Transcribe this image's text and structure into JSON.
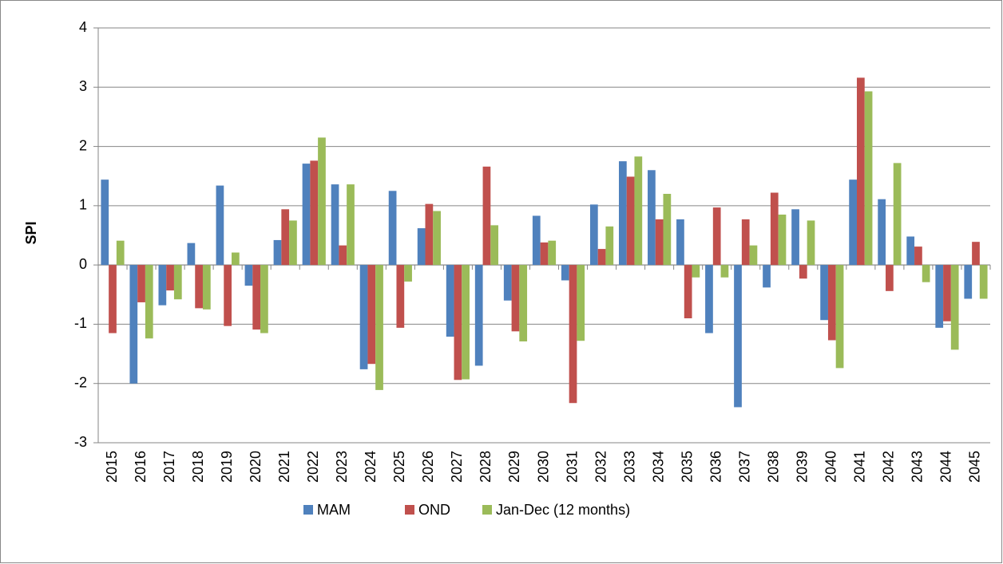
{
  "chart_data": {
    "type": "bar",
    "y_label": "SPI",
    "categories": [
      "2015",
      "2016",
      "2017",
      "2018",
      "2019",
      "2020",
      "2021",
      "2022",
      "2023",
      "2024",
      "2025",
      "2026",
      "2027",
      "2028",
      "2029",
      "2030",
      "2031",
      "2032",
      "2033",
      "2034",
      "2035",
      "2036",
      "2037",
      "2038",
      "2039",
      "2040",
      "2041",
      "2042",
      "2043",
      "2044",
      "2045"
    ],
    "series": [
      {
        "name": "MAM",
        "color": "#4f81bd",
        "values": [
          1.44,
          -2.0,
          -0.68,
          0.37,
          1.34,
          -0.35,
          0.42,
          1.71,
          1.36,
          -1.76,
          1.25,
          0.62,
          -1.21,
          -1.7,
          -0.6,
          0.83,
          -0.26,
          1.02,
          1.75,
          1.6,
          0.77,
          -1.15,
          -2.4,
          -0.38,
          0.94,
          -0.93,
          1.44,
          1.11,
          0.48,
          -1.06,
          -0.57
        ]
      },
      {
        "name": "OND",
        "color": "#c0504d",
        "values": [
          -1.15,
          -0.63,
          -0.43,
          -0.73,
          -1.03,
          -1.09,
          0.94,
          1.76,
          0.33,
          -1.67,
          -1.06,
          1.03,
          -1.94,
          1.66,
          -1.12,
          0.38,
          -2.33,
          0.27,
          1.49,
          0.77,
          -0.9,
          0.97,
          0.77,
          1.22,
          -0.23,
          -1.27,
          3.16,
          -0.44,
          0.31,
          -0.95,
          0.39
        ]
      },
      {
        "name": "Jan-Dec (12 months)",
        "color": "#9bbb59",
        "values": [
          0.41,
          -1.24,
          -0.58,
          -0.75,
          0.21,
          -1.15,
          0.75,
          2.15,
          1.36,
          -2.11,
          -0.28,
          0.91,
          -1.93,
          0.67,
          -1.29,
          0.41,
          -1.28,
          0.65,
          1.83,
          1.2,
          -0.21,
          -0.21,
          0.33,
          0.85,
          0.75,
          -1.74,
          2.93,
          1.72,
          -0.29,
          -1.43,
          -0.57
        ]
      }
    ],
    "ylim": [
      -3,
      4
    ],
    "yticks": [
      -3,
      -2,
      -1,
      0,
      1,
      2,
      3,
      4
    ],
    "grid": true
  }
}
